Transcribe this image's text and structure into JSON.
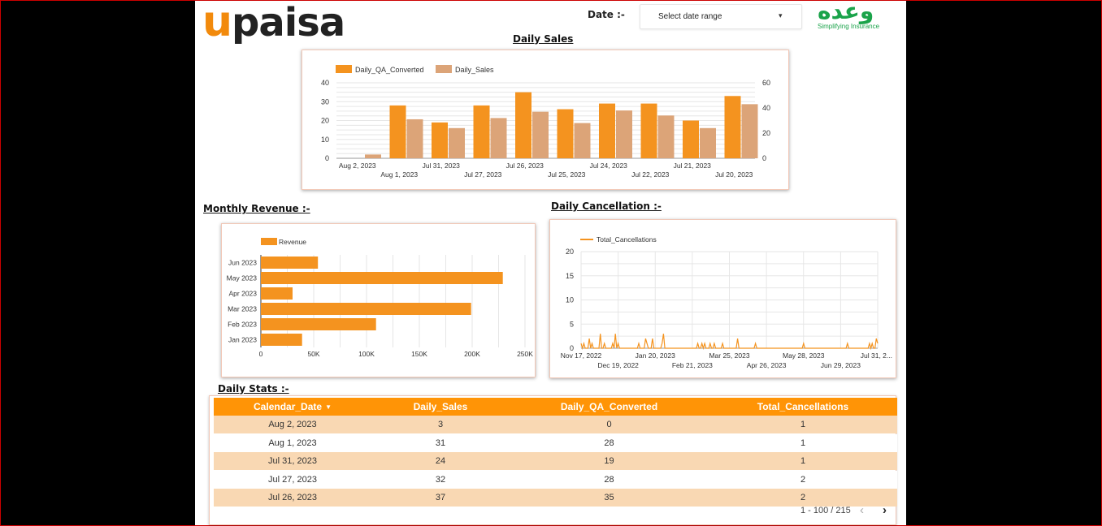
{
  "header": {
    "brand_left_u": "u",
    "brand_left_rest": "paisa",
    "date_label": "Date :-",
    "date_select_placeholder": "Select date range",
    "brand_right_script": "وعده",
    "brand_right_tagline": "Simplifying Insurance"
  },
  "sections": {
    "daily_sales": "Daily Sales",
    "monthly_revenue": "Monthly Revenue :-",
    "daily_cancellation": "Daily Cancellation :-",
    "daily_stats": "Daily Stats :-"
  },
  "colors": {
    "orange": "#f4931f",
    "tan": "#dca478",
    "header_orange": "#ff9406",
    "row_stripe": "#f9d8b3"
  },
  "chart_data": [
    {
      "type": "bar",
      "title": "Daily Sales",
      "categories": [
        "Aug 2, 2023",
        "Aug 1, 2023",
        "Jul 31, 2023",
        "Jul 27, 2023",
        "Jul 26, 2023",
        "Jul 25, 2023",
        "Jul 24, 2023",
        "Jul 22, 2023",
        "Jul 21, 2023",
        "Jul 20, 2023"
      ],
      "series": [
        {
          "name": "Daily_QA_Converted",
          "axis": "left",
          "values": [
            0,
            28,
            19,
            28,
            35,
            26,
            29,
            29,
            20,
            33
          ]
        },
        {
          "name": "Daily_Sales",
          "axis": "right",
          "values": [
            3,
            31,
            24,
            32,
            37,
            28,
            38,
            34,
            24,
            43
          ]
        }
      ],
      "ylim_left": [
        0,
        40
      ],
      "yticks_left": [
        0,
        10,
        20,
        30,
        40
      ],
      "ylim_right": [
        0,
        60
      ],
      "yticks_right": [
        0,
        20,
        40,
        60
      ],
      "legend": "top-left",
      "grid": true
    },
    {
      "type": "bar",
      "orientation": "horizontal",
      "title": "Monthly Revenue :-",
      "categories": [
        "Jun 2023",
        "May 2023",
        "Apr 2023",
        "Mar 2023",
        "Feb 2023",
        "Jan 2023"
      ],
      "series": [
        {
          "name": "Revenue",
          "values": [
            54000,
            229000,
            30000,
            199000,
            109000,
            39000
          ]
        }
      ],
      "xlim": [
        0,
        250000
      ],
      "xticks": [
        0,
        50000,
        100000,
        150000,
        200000,
        250000
      ],
      "xtick_labels": [
        "0",
        "50K",
        "100K",
        "150K",
        "200K",
        "250K"
      ],
      "legend": "top-left",
      "grid": true
    },
    {
      "type": "line",
      "title": "Daily Cancellation :-",
      "series": [
        {
          "name": "Total_Cancellations",
          "values": [
            1,
            0,
            1,
            0,
            0,
            0,
            2,
            0,
            1,
            0,
            0,
            0,
            0,
            0,
            3,
            0,
            0,
            1,
            0,
            0,
            0,
            0,
            0,
            1,
            0,
            3,
            0,
            1,
            0,
            0,
            0,
            0,
            0,
            0,
            0,
            0,
            0,
            0,
            0,
            0,
            0,
            0,
            1,
            0,
            0,
            0,
            0,
            2,
            1,
            0,
            0,
            0,
            2,
            0,
            0,
            0,
            0,
            0,
            0,
            1,
            3,
            0,
            0,
            0,
            0,
            0,
            0,
            0,
            0,
            0,
            0,
            0,
            0,
            0,
            0,
            0,
            0,
            0,
            0,
            0,
            0,
            0,
            0,
            0,
            0,
            1,
            0,
            0,
            1,
            0,
            1,
            0,
            0,
            0,
            1,
            0,
            0,
            1,
            0,
            0,
            0,
            0,
            0,
            1,
            0,
            0,
            0,
            0,
            0,
            0,
            0,
            0,
            0,
            0,
            2,
            0,
            0,
            0,
            0,
            0,
            0,
            0,
            0,
            0,
            0,
            0,
            0,
            1,
            0,
            0,
            0,
            0,
            0,
            0,
            0,
            0,
            0,
            0,
            0,
            0,
            0,
            0,
            0,
            0,
            0,
            0,
            0,
            0,
            0,
            0,
            0,
            0,
            0,
            0,
            0,
            0,
            0,
            0,
            0,
            0,
            0,
            0,
            1,
            0,
            0,
            0,
            0,
            0,
            0,
            0,
            0,
            0,
            0,
            0,
            0,
            0,
            0,
            0,
            0,
            0,
            0,
            0,
            0,
            0,
            0,
            0,
            0,
            0,
            0,
            0,
            0,
            0,
            0,
            0,
            1,
            0,
            0,
            0,
            0,
            0,
            0,
            0,
            0,
            0,
            0,
            0,
            0,
            0,
            0,
            0,
            1,
            0,
            1,
            0,
            0,
            2,
            1
          ]
        }
      ],
      "ylim": [
        0,
        20
      ],
      "yticks": [
        0,
        5,
        10,
        15,
        20
      ],
      "xtick_labels_top": [
        "Nov 17, 2022",
        "Jan 20, 2023",
        "Mar 25, 2023",
        "May 28, 2023",
        "Jul 31, 2..."
      ],
      "xtick_labels_bottom": [
        "Dec 19, 2022",
        "Feb 21, 2023",
        "Apr 26, 2023",
        "Jun 29, 2023"
      ],
      "legend": "top-left",
      "grid": true
    },
    {
      "type": "table",
      "title": "Daily Stats :-",
      "columns": [
        "Calendar_Date",
        "Daily_Sales",
        "Daily_QA_Converted",
        "Total_Cancellations"
      ],
      "rows": [
        [
          "Aug 2, 2023",
          "3",
          "0",
          "1"
        ],
        [
          "Aug 1, 2023",
          "31",
          "28",
          "1"
        ],
        [
          "Jul 31, 2023",
          "24",
          "19",
          "1"
        ],
        [
          "Jul 27, 2023",
          "32",
          "28",
          "2"
        ],
        [
          "Jul 26, 2023",
          "37",
          "35",
          "2"
        ]
      ],
      "pagination": "1 - 100 / 215"
    }
  ]
}
